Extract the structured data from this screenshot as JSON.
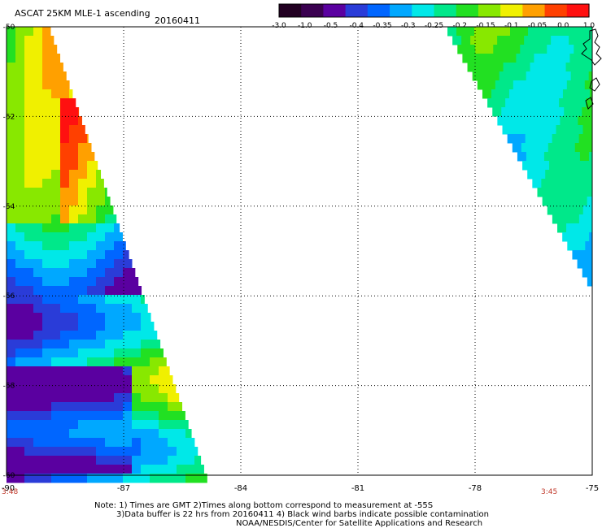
{
  "header": {
    "title": "ASCAT 25KM MLE-1 ascending",
    "date": "20160411"
  },
  "colorbar": {
    "labels": [
      "-3.0",
      "-1.0",
      "-0.5",
      "-0.4",
      "-0.35",
      "-0.3",
      "-0.25",
      "-0.2",
      "-0.15",
      "-0.1",
      "-0.05",
      "0.0",
      "1.0"
    ],
    "colors": [
      "#220022",
      "#3a0050",
      "#5a00a0",
      "#2a3cd8",
      "#0066ff",
      "#00a8ff",
      "#00e8e8",
      "#00e88a",
      "#22e022",
      "#88e800",
      "#f0f000",
      "#ffa000",
      "#ff4000",
      "#ff1010"
    ]
  },
  "map": {
    "lon_ticks": [
      "-90",
      "-87",
      "-84",
      "-81",
      "-78",
      "-75"
    ],
    "lat_ticks": [
      "-50",
      "-52",
      "-54",
      "-56",
      "-58",
      "-60"
    ],
    "grid": true,
    "lon_range": [
      -90,
      -75
    ],
    "lat_range": [
      -60,
      -50
    ]
  },
  "times": {
    "left": "3:48",
    "right": "3:45"
  },
  "notes": {
    "line1": "Note: 1) Times are GMT 2)Times along bottom correspond to measurement at -55S",
    "line2": "3)Data buffer is 22 hrs from 20160411 4) Black wind barbs indicate possible contamination",
    "line3": "NOAA/NESDIS/Center for Satellite Applications and Research"
  }
}
